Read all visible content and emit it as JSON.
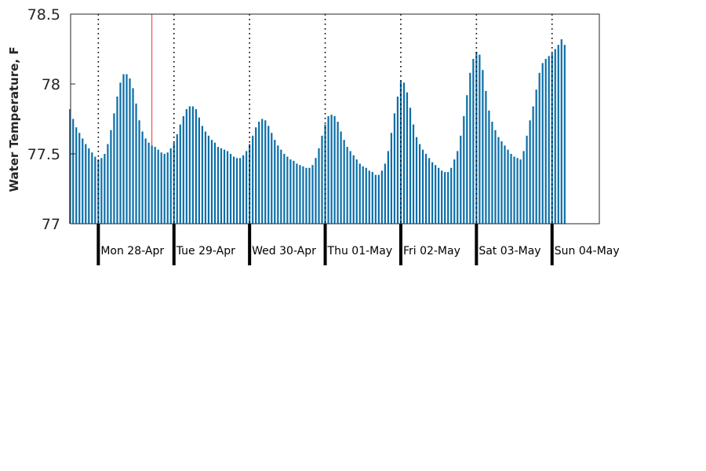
{
  "chart_data": {
    "type": "bar",
    "title": "",
    "xlabel": "",
    "ylabel": "Water Temperature, F",
    "ylim": [
      77,
      78.5
    ],
    "yticks": [
      "77",
      "77.5",
      "78",
      "78.5"
    ],
    "ytick_values": [
      77,
      77.5,
      78,
      78.5
    ],
    "bar_color": "#0a6ea8",
    "marker_color": "#e8392b",
    "day_labels": [
      "Mon 28-Apr",
      "Tue 29-Apr",
      "Wed 30-Apr",
      "Thu 01-May",
      "Fri 02-May",
      "Sat 03-May",
      "Sun 04-May"
    ],
    "x_start": "2025-04-27T15:00",
    "interval_hours": 1,
    "marker_time": "2025-04-28T17:00",
    "values": [
      77.82,
      77.75,
      77.69,
      77.65,
      77.61,
      77.57,
      77.54,
      77.51,
      77.48,
      77.46,
      77.47,
      77.5,
      77.57,
      77.67,
      77.79,
      77.91,
      78.01,
      78.07,
      78.07,
      78.04,
      77.97,
      77.86,
      77.74,
      77.66,
      77.61,
      77.58,
      77.56,
      77.55,
      77.53,
      77.51,
      77.5,
      77.51,
      77.54,
      77.58,
      77.64,
      77.71,
      77.77,
      77.82,
      77.84,
      77.84,
      77.82,
      77.76,
      77.7,
      77.66,
      77.63,
      77.6,
      77.58,
      77.55,
      77.54,
      77.53,
      77.52,
      77.5,
      77.48,
      77.47,
      77.47,
      77.49,
      77.52,
      77.57,
      77.63,
      77.69,
      77.73,
      77.75,
      77.74,
      77.7,
      77.65,
      77.6,
      77.56,
      77.53,
      77.5,
      77.48,
      77.46,
      77.45,
      77.43,
      77.42,
      77.41,
      77.4,
      77.4,
      77.42,
      77.47,
      77.54,
      77.63,
      77.71,
      77.77,
      77.78,
      77.77,
      77.73,
      77.66,
      77.6,
      77.55,
      77.52,
      77.49,
      77.46,
      77.43,
      77.41,
      77.4,
      77.38,
      77.37,
      77.35,
      77.35,
      77.38,
      77.43,
      77.52,
      77.65,
      77.79,
      77.91,
      78.02,
      78.01,
      77.94,
      77.83,
      77.71,
      77.62,
      77.57,
      77.53,
      77.5,
      77.47,
      77.44,
      77.42,
      77.4,
      77.38,
      77.37,
      77.37,
      77.4,
      77.46,
      77.52,
      77.63,
      77.77,
      77.92,
      78.08,
      78.18,
      78.23,
      78.21,
      78.1,
      77.95,
      77.81,
      77.73,
      77.67,
      77.62,
      77.59,
      77.56,
      77.53,
      77.5,
      77.48,
      77.47,
      77.46,
      77.52,
      77.63,
      77.74,
      77.84,
      77.96,
      78.08,
      78.15,
      78.18,
      78.2,
      78.22,
      78.25,
      78.28,
      78.32,
      78.28
    ]
  }
}
